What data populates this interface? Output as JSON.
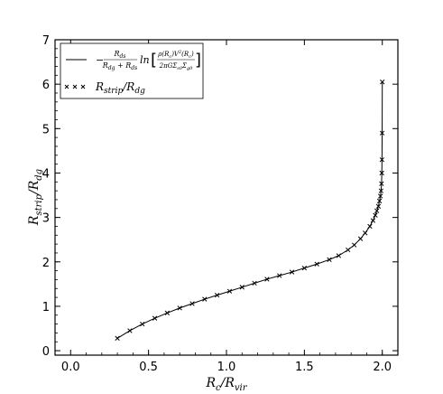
{
  "chart_data": {
    "type": "line",
    "xlabel": "R_c / R_vir",
    "ylabel": "R_strip / R_dg",
    "xlim": [
      -0.1,
      2.1
    ],
    "ylim": [
      -0.1,
      7.0
    ],
    "xticks": [
      "0.0",
      "0.5",
      "1.0",
      "1.5",
      "2.0"
    ],
    "yticks": [
      "0",
      "1",
      "2",
      "3",
      "4",
      "5",
      "6",
      "7"
    ],
    "grid": false,
    "legend_position": "top-left",
    "legend": {
      "line_label": "−(R_ds / (R_dg + R_ds)) ln[ρ(R_c)V²(R_c) / (2πGΣ_s0Σ_g0)]",
      "marker_label": "R_strip / R_dg"
    },
    "series": [
      {
        "name": "R_strip/R_dg",
        "style": "line+x-markers",
        "color": "#000000",
        "x": [
          0.3,
          0.38,
          0.46,
          0.54,
          0.62,
          0.7,
          0.78,
          0.86,
          0.94,
          1.02,
          1.1,
          1.18,
          1.26,
          1.34,
          1.42,
          1.5,
          1.58,
          1.66,
          1.72,
          1.78,
          1.82,
          1.86,
          1.89,
          1.92,
          1.94,
          1.955,
          1.965,
          1.975,
          1.982,
          1.988,
          1.992,
          1.995,
          1.997,
          1.998,
          1.999,
          2.0
        ],
        "y": [
          0.28,
          0.45,
          0.6,
          0.73,
          0.85,
          0.96,
          1.06,
          1.16,
          1.25,
          1.34,
          1.43,
          1.52,
          1.61,
          1.69,
          1.77,
          1.86,
          1.95,
          2.05,
          2.14,
          2.27,
          2.38,
          2.52,
          2.65,
          2.8,
          2.93,
          3.05,
          3.15,
          3.25,
          3.37,
          3.48,
          3.6,
          3.76,
          4.0,
          4.3,
          4.9,
          6.05
        ]
      }
    ]
  }
}
